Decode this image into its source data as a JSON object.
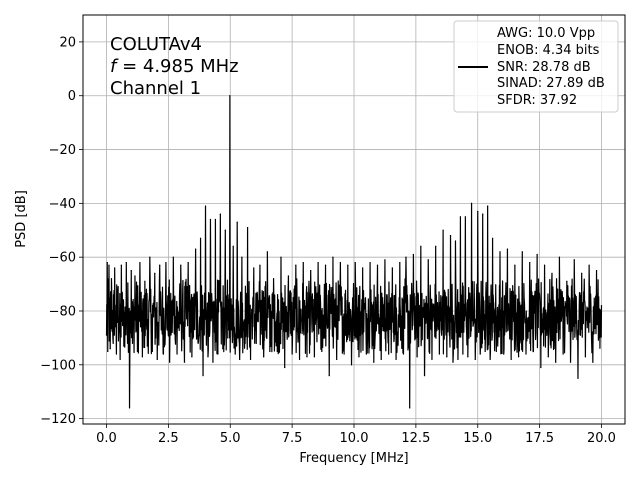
{
  "chart_data": {
    "type": "line",
    "xlabel": "Frequency [MHz]",
    "ylabel": "PSD [dB]",
    "xlim": [
      -0.95,
      20.95
    ],
    "ylim": [
      -122,
      30
    ],
    "xticks": [
      0.0,
      2.5,
      5.0,
      7.5,
      10.0,
      12.5,
      15.0,
      17.5,
      20.0
    ],
    "xtick_labels": [
      "0.0",
      "2.5",
      "5.0",
      "7.5",
      "10.0",
      "12.5",
      "15.0",
      "17.5",
      "20.0"
    ],
    "yticks": [
      20,
      0,
      -20,
      -40,
      -60,
      -80,
      -100,
      -120
    ],
    "ytick_labels": [
      "20",
      "0",
      "−20",
      "−40",
      "−60",
      "−80",
      "−100",
      "−120"
    ],
    "grid": true,
    "annotation": {
      "line1": "COLUTAv4",
      "line2_prefix": "f",
      "line2_rest": " = 4.985 MHz",
      "line3": "Channel 1"
    },
    "legend": {
      "location": "top-right",
      "entries": [
        "AWG: 10.0 Vpp",
        "ENOB: 4.34 bits",
        "SNR: 28.78 dB",
        "SINAD: 27.89 dB",
        "SFDR: 37.92"
      ],
      "line_color": "#000000"
    },
    "series": [
      {
        "color": "#000000",
        "noise_floor_db": -82,
        "points": [
          [
            0.0,
            -89
          ],
          [
            0.03,
            -62
          ],
          [
            0.05,
            -95
          ],
          [
            0.1,
            -63
          ],
          [
            0.15,
            -94
          ],
          [
            0.2,
            -68
          ],
          [
            0.27,
            -92
          ],
          [
            0.33,
            -64
          ],
          [
            0.4,
            -96
          ],
          [
            0.47,
            -71
          ],
          [
            0.55,
            -98
          ],
          [
            0.6,
            -63
          ],
          [
            0.7,
            -93
          ],
          [
            0.8,
            -62
          ],
          [
            0.85,
            -92
          ],
          [
            0.93,
            -116
          ],
          [
            0.97,
            -80
          ],
          [
            1.0,
            -65
          ],
          [
            1.05,
            -92
          ],
          [
            1.15,
            -67
          ],
          [
            1.25,
            -95
          ],
          [
            1.35,
            -62
          ],
          [
            1.45,
            -97
          ],
          [
            1.55,
            -69
          ],
          [
            1.65,
            -93
          ],
          [
            1.75,
            -60
          ],
          [
            1.85,
            -95
          ],
          [
            1.95,
            -66
          ],
          [
            2.05,
            -98
          ],
          [
            2.15,
            -63
          ],
          [
            2.3,
            -96
          ],
          [
            2.4,
            -62
          ],
          [
            2.55,
            -99
          ],
          [
            2.7,
            -60
          ],
          [
            2.85,
            -96
          ],
          [
            3.0,
            -63
          ],
          [
            3.15,
            -99
          ],
          [
            3.3,
            -62
          ],
          [
            3.45,
            -97
          ],
          [
            3.6,
            -57
          ],
          [
            3.7,
            -92
          ],
          [
            3.8,
            -53
          ],
          [
            3.9,
            -104
          ],
          [
            4.0,
            -41
          ],
          [
            4.1,
            -97
          ],
          [
            4.2,
            -46
          ],
          [
            4.3,
            -99
          ],
          [
            4.4,
            -46
          ],
          [
            4.5,
            -96
          ],
          [
            4.6,
            -44
          ],
          [
            4.7,
            -94
          ],
          [
            4.8,
            -50
          ],
          [
            4.9,
            -90
          ],
          [
            4.985,
            0
          ],
          [
            5.05,
            -87
          ],
          [
            5.12,
            -56
          ],
          [
            5.2,
            -96
          ],
          [
            5.28,
            -47
          ],
          [
            5.38,
            -98
          ],
          [
            5.47,
            -60
          ],
          [
            5.6,
            -92
          ],
          [
            5.7,
            -49
          ],
          [
            5.82,
            -98
          ],
          [
            5.95,
            -64
          ],
          [
            6.05,
            -92
          ],
          [
            6.2,
            -63
          ],
          [
            6.35,
            -97
          ],
          [
            6.5,
            -58
          ],
          [
            6.6,
            -95
          ],
          [
            6.75,
            -68
          ],
          [
            6.9,
            -95
          ],
          [
            7.05,
            -60
          ],
          [
            7.2,
            -101
          ],
          [
            7.35,
            -67
          ],
          [
            7.5,
            -96
          ],
          [
            7.65,
            -63
          ],
          [
            7.8,
            -98
          ],
          [
            7.95,
            -62
          ],
          [
            8.1,
            -97
          ],
          [
            8.25,
            -65
          ],
          [
            8.4,
            -97
          ],
          [
            8.55,
            -62
          ],
          [
            8.7,
            -95
          ],
          [
            8.85,
            -63
          ],
          [
            9.0,
            -104
          ],
          [
            9.15,
            -60
          ],
          [
            9.3,
            -98
          ],
          [
            9.45,
            -62
          ],
          [
            9.6,
            -96
          ],
          [
            9.75,
            -63
          ],
          [
            9.9,
            -100
          ],
          [
            10.05,
            -62
          ],
          [
            10.2,
            -97
          ],
          [
            10.35,
            -64
          ],
          [
            10.5,
            -96
          ],
          [
            10.65,
            -62
          ],
          [
            10.8,
            -99
          ],
          [
            10.95,
            -63
          ],
          [
            11.1,
            -98
          ],
          [
            11.25,
            -61
          ],
          [
            11.4,
            -96
          ],
          [
            11.55,
            -64
          ],
          [
            11.7,
            -98
          ],
          [
            11.85,
            -62
          ],
          [
            12.0,
            -96
          ],
          [
            12.1,
            -60
          ],
          [
            12.25,
            -116
          ],
          [
            12.4,
            -59
          ],
          [
            12.55,
            -97
          ],
          [
            12.7,
            -56
          ],
          [
            12.85,
            -104
          ],
          [
            13.0,
            -61
          ],
          [
            13.15,
            -98
          ],
          [
            13.3,
            -56
          ],
          [
            13.45,
            -96
          ],
          [
            13.6,
            -50
          ],
          [
            13.75,
            -97
          ],
          [
            13.9,
            -52
          ],
          [
            14.0,
            -99
          ],
          [
            14.1,
            -54
          ],
          [
            14.2,
            -98
          ],
          [
            14.3,
            -45
          ],
          [
            14.4,
            -96
          ],
          [
            14.5,
            -45
          ],
          [
            14.6,
            -97
          ],
          [
            14.75,
            -40
          ],
          [
            14.9,
            -98
          ],
          [
            15.0,
            -43
          ],
          [
            15.1,
            -96
          ],
          [
            15.2,
            -44
          ],
          [
            15.3,
            -95
          ],
          [
            15.4,
            -41
          ],
          [
            15.5,
            -98
          ],
          [
            15.6,
            -53
          ],
          [
            15.75,
            -95
          ],
          [
            15.9,
            -58
          ],
          [
            16.05,
            -96
          ],
          [
            16.2,
            -57
          ],
          [
            16.35,
            -98
          ],
          [
            16.5,
            -63
          ],
          [
            16.65,
            -97
          ],
          [
            16.8,
            -58
          ],
          [
            16.95,
            -96
          ],
          [
            17.1,
            -62
          ],
          [
            17.25,
            -95
          ],
          [
            17.4,
            -59
          ],
          [
            17.55,
            -101
          ],
          [
            17.7,
            -63
          ],
          [
            17.85,
            -97
          ],
          [
            18.0,
            -66
          ],
          [
            18.15,
            -99
          ],
          [
            18.3,
            -60
          ],
          [
            18.45,
            -96
          ],
          [
            18.6,
            -69
          ],
          [
            18.75,
            -99
          ],
          [
            18.9,
            -61
          ],
          [
            19.05,
            -105
          ],
          [
            19.2,
            -66
          ],
          [
            19.35,
            -97
          ],
          [
            19.5,
            -63
          ],
          [
            19.65,
            -99
          ],
          [
            19.8,
            -65
          ],
          [
            19.9,
            -90
          ],
          [
            20.0,
            -78
          ]
        ]
      }
    ]
  }
}
